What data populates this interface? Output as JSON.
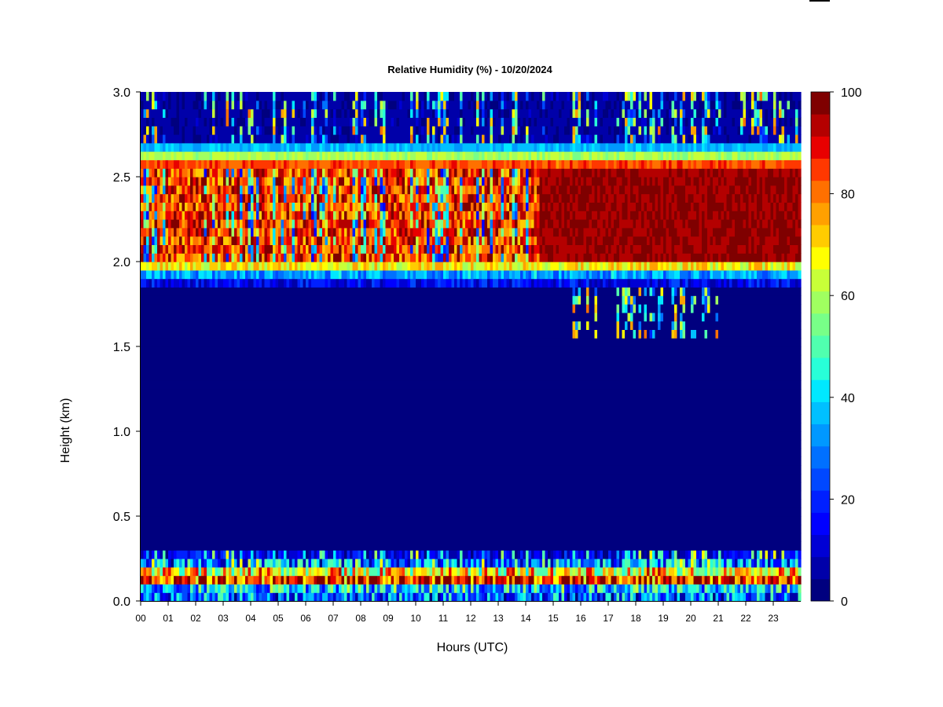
{
  "chart_data": {
    "type": "heatmap",
    "title": "Relative Humidity (%) - 10/20/2024",
    "xlabel": "Hours (UTC)",
    "ylabel": "Height (km)",
    "xlim": [
      0,
      24
    ],
    "ylim": [
      0,
      3.0
    ],
    "x_ticks": [
      "00",
      "01",
      "02",
      "03",
      "04",
      "05",
      "06",
      "07",
      "08",
      "09",
      "10",
      "11",
      "12",
      "13",
      "14",
      "15",
      "16",
      "17",
      "18",
      "19",
      "20",
      "21",
      "22",
      "23"
    ],
    "y_ticks": [
      "0.0",
      "0.5",
      "1.0",
      "1.5",
      "2.0",
      "2.5",
      "3.0"
    ],
    "colorbar": {
      "range": [
        0,
        100
      ],
      "ticks": [
        "0",
        "20",
        "40",
        "60",
        "80",
        "100"
      ],
      "colors": [
        "#00007f",
        "#0000a9",
        "#0000d4",
        "#0000ff",
        "#0020ff",
        "#0048ff",
        "#0070ff",
        "#0098ff",
        "#00c0ff",
        "#00e8ff",
        "#28ffd8",
        "#50ffaf",
        "#78ff88",
        "#a0ff60",
        "#c8ff38",
        "#ffff00",
        "#ffcc00",
        "#ffa000",
        "#ff7000",
        "#ff3800",
        "#e80000",
        "#b40000",
        "#7f0000"
      ]
    },
    "features": [
      {
        "name": "near-surface moist layer",
        "height_km": [
          0.0,
          0.3
        ],
        "rh_percent": [
          40,
          100
        ],
        "hours": [
          0,
          24
        ]
      },
      {
        "name": "dry middle layer",
        "height_km": [
          0.3,
          1.9
        ],
        "rh_percent": [
          0,
          5
        ],
        "hours": [
          0,
          24
        ]
      },
      {
        "name": "saturated layer",
        "height_km": [
          2.0,
          2.55
        ],
        "rh_percent": [
          60,
          100
        ],
        "hours": [
          0,
          24
        ],
        "most_saturated_hours": [
          14.5,
          24
        ]
      },
      {
        "name": "upper transition",
        "height_km": [
          2.55,
          2.7
        ],
        "rh_percent": [
          20,
          80
        ],
        "hours": [
          0,
          24
        ]
      },
      {
        "name": "dry upper layer",
        "height_km": [
          2.7,
          3.0
        ],
        "rh_percent": [
          0,
          20
        ],
        "hours": [
          0,
          24
        ]
      }
    ]
  }
}
